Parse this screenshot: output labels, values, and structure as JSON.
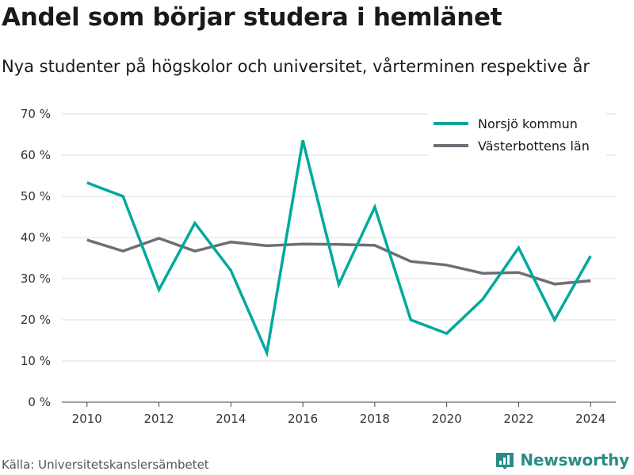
{
  "title": "Andel som börjar studera i hemlänet",
  "subtitle": "Nya studenter på högskolor och universitet, vårterminen respektive år",
  "source": "Källa: Universitetskanslersämbetet",
  "brand": "Newsworthy",
  "colors": {
    "norsjo": "#00a99d",
    "vasterbotten": "#6e6e76",
    "grid": "#dcdcdc",
    "brand": "#2a8c86"
  },
  "chart_data": {
    "type": "line",
    "x": [
      2010,
      2011,
      2012,
      2013,
      2014,
      2015,
      2016,
      2017,
      2018,
      2019,
      2020,
      2021,
      2022,
      2023,
      2024
    ],
    "series": [
      {
        "name": "Norsjö kommun",
        "color": "#00a99d",
        "values": [
          53.3,
          50.0,
          27.3,
          43.5,
          32.0,
          12.0,
          63.6,
          28.6,
          47.4,
          20.0,
          16.7,
          25.0,
          37.5,
          20.0,
          35.5
        ]
      },
      {
        "name": "Västerbottens län",
        "color": "#6e6e76",
        "values": [
          39.4,
          36.7,
          39.8,
          36.7,
          38.9,
          38.0,
          38.4,
          38.3,
          38.1,
          34.2,
          33.3,
          31.3,
          31.5,
          28.7,
          29.5
        ]
      }
    ],
    "ylim": [
      0,
      70
    ],
    "yticks": [
      0,
      10,
      20,
      30,
      40,
      50,
      60,
      70
    ],
    "ytick_labels": [
      "0 %",
      "10 %",
      "20 %",
      "30 %",
      "40 %",
      "50 %",
      "60 %",
      "70 %"
    ],
    "xticks": [
      2010,
      2012,
      2014,
      2016,
      2018,
      2020,
      2022,
      2024
    ],
    "xtick_labels": [
      "2010",
      "2012",
      "2014",
      "2016",
      "2018",
      "2020",
      "2022",
      "2024"
    ],
    "xlim": [
      2009.3,
      2024.7
    ],
    "grid": true,
    "legend_position": "top-right"
  }
}
